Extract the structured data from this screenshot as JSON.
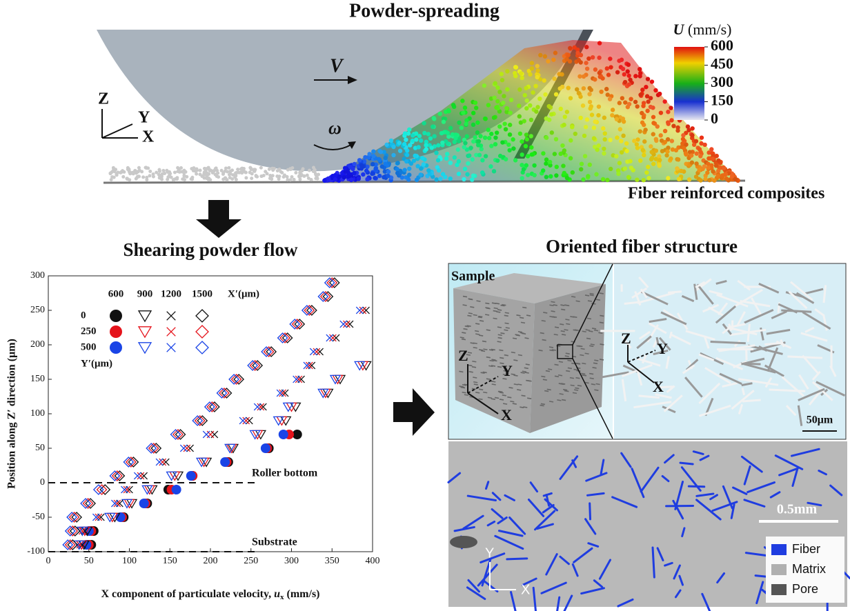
{
  "top": {
    "title": "Powder-spreading",
    "velocity": "V",
    "angular": "ω",
    "axes": [
      "Z",
      "Y",
      "X"
    ],
    "caption": "Fiber reinforced composites",
    "colorbar": {
      "label_symbol": "U",
      "label_unit": "(mm/s)",
      "lim": [
        0,
        600
      ],
      "ticks": [
        600,
        450,
        300,
        150,
        0
      ]
    }
  },
  "chart_data": {
    "type": "scatter",
    "title": "Shearing powder flow",
    "ylabel": "Position along Z′ direction (μm)",
    "xlabel_parts": [
      "X component of particulate velocity, ",
      "u",
      "x",
      " (mm/s)"
    ],
    "xlim": [
      0,
      400
    ],
    "ylim": [
      -100,
      300
    ],
    "xticks": [
      0,
      50,
      100,
      150,
      200,
      250,
      300,
      350,
      400
    ],
    "yticks": [
      -100,
      -50,
      0,
      50,
      100,
      150,
      200,
      250,
      300
    ],
    "legend": {
      "columns": [
        "600",
        "900",
        "1200",
        "1500"
      ],
      "columns_title": "X′(μm)",
      "rows": [
        "0",
        "250",
        "500"
      ],
      "rows_title": "Y′(μm)"
    },
    "annotations": [
      {
        "text": "Roller bottom",
        "y": 0
      },
      {
        "text": "Substrate",
        "y": -100
      }
    ],
    "series": [
      {
        "marker": "circle",
        "color": "#111111",
        "y": [
          -90,
          -70,
          -50,
          -30,
          -10,
          10,
          30,
          50,
          70
        ],
        "x": [
          53,
          56,
          93,
          122,
          148,
          178,
          222,
          272,
          307
        ]
      },
      {
        "marker": "circle",
        "color": "#e5131b",
        "y": [
          -90,
          -70,
          -50,
          -30,
          -10,
          10,
          30,
          50,
          70
        ],
        "x": [
          50,
          53,
          91,
          120,
          152,
          178,
          220,
          270,
          297
        ]
      },
      {
        "marker": "circle",
        "color": "#1a44e6",
        "y": [
          -90,
          -70,
          -50,
          -30,
          -10,
          10,
          30,
          50,
          70
        ],
        "x": [
          47,
          50,
          89,
          118,
          158,
          176,
          218,
          268,
          290
        ]
      },
      {
        "marker": "triangle",
        "color": "#111111",
        "y": [
          -90,
          -70,
          -50,
          -30,
          -10,
          10,
          30,
          50,
          70,
          90,
          110,
          130,
          150,
          170
        ],
        "x": [
          44,
          48,
          82,
          103,
          128,
          160,
          195,
          228,
          262,
          293,
          305,
          345,
          360,
          392
        ]
      },
      {
        "marker": "triangle",
        "color": "#e5131b",
        "y": [
          -90,
          -70,
          -50,
          -30,
          -10,
          10,
          30,
          50,
          70,
          90,
          110,
          130,
          150,
          170
        ],
        "x": [
          41,
          45,
          79,
          100,
          125,
          156,
          192,
          226,
          258,
          288,
          300,
          342,
          357,
          388
        ]
      },
      {
        "marker": "triangle",
        "color": "#1a44e6",
        "y": [
          -90,
          -70,
          -50,
          -30,
          -10,
          10,
          30,
          50,
          70,
          90,
          110,
          130,
          150,
          170
        ],
        "x": [
          38,
          42,
          76,
          97,
          122,
          152,
          189,
          224,
          255,
          284,
          296,
          339,
          354,
          384
        ]
      },
      {
        "marker": "cross",
        "color": "#111111",
        "y": [
          -90,
          -70,
          -50,
          -30,
          -10,
          10,
          30,
          50,
          70,
          90,
          110,
          130,
          150,
          170,
          190,
          210,
          230,
          250
        ],
        "x": [
          42,
          45,
          65,
          88,
          100,
          118,
          145,
          175,
          205,
          248,
          265,
          292,
          312,
          325,
          335,
          355,
          372,
          392
        ]
      },
      {
        "marker": "cross",
        "color": "#e5131b",
        "y": [
          -90,
          -70,
          -50,
          -30,
          -10,
          10,
          30,
          50,
          70,
          90,
          110,
          130,
          150,
          170,
          190,
          210,
          230,
          250
        ],
        "x": [
          39,
          42,
          62,
          85,
          97,
          114,
          141,
          171,
          200,
          244,
          262,
          289,
          309,
          322,
          331,
          351,
          368,
          388
        ]
      },
      {
        "marker": "cross",
        "color": "#1a44e6",
        "y": [
          -90,
          -70,
          -50,
          -30,
          -10,
          10,
          30,
          50,
          70,
          90,
          110,
          130,
          150,
          170,
          190,
          210,
          230,
          250
        ],
        "x": [
          36,
          39,
          59,
          82,
          94,
          110,
          137,
          167,
          195,
          240,
          258,
          286,
          306,
          319,
          327,
          347,
          364,
          384
        ]
      },
      {
        "marker": "diamond",
        "color": "#111111",
        "y": [
          -90,
          -70,
          -50,
          -30,
          -10,
          10,
          30,
          50,
          70,
          90,
          110,
          130,
          150,
          170,
          190,
          210,
          230,
          250,
          270,
          290
        ],
        "x": [
          30,
          33,
          35,
          52,
          70,
          88,
          105,
          133,
          163,
          190,
          205,
          220,
          235,
          258,
          275,
          295,
          310,
          325,
          345,
          353
        ]
      },
      {
        "marker": "diamond",
        "color": "#e5131b",
        "y": [
          -90,
          -70,
          -50,
          -30,
          -10,
          10,
          30,
          50,
          70,
          90,
          110,
          130,
          150,
          170,
          190,
          210,
          230,
          250,
          270,
          290
        ],
        "x": [
          27,
          30,
          32,
          49,
          66,
          85,
          102,
          130,
          160,
          187,
          202,
          217,
          232,
          255,
          272,
          292,
          307,
          322,
          342,
          350
        ]
      },
      {
        "marker": "diamond",
        "color": "#1a44e6",
        "y": [
          -90,
          -70,
          -50,
          -30,
          -10,
          10,
          30,
          50,
          70,
          90,
          110,
          130,
          150,
          170,
          190,
          210,
          230,
          250,
          270,
          290
        ],
        "x": [
          24,
          27,
          29,
          46,
          62,
          82,
          99,
          127,
          157,
          184,
          199,
          214,
          229,
          252,
          269,
          289,
          304,
          319,
          339,
          347
        ]
      }
    ]
  },
  "right": {
    "title": "Oriented fiber structure",
    "sample_label": "Sample",
    "sample_axes": [
      "Z",
      "Y",
      "X"
    ],
    "zoom_axes": [
      "Z",
      "Y",
      "X"
    ],
    "scale_bar": "50μm",
    "micrograph": {
      "scale_bar": "0.5mm",
      "axes": [
        "Y",
        "X"
      ],
      "legend": [
        {
          "name": "Fiber",
          "color": "#1f3de0"
        },
        {
          "name": "Matrix",
          "color": "#b0b0b0"
        },
        {
          "name": "Pore",
          "color": "#555555"
        }
      ]
    }
  }
}
